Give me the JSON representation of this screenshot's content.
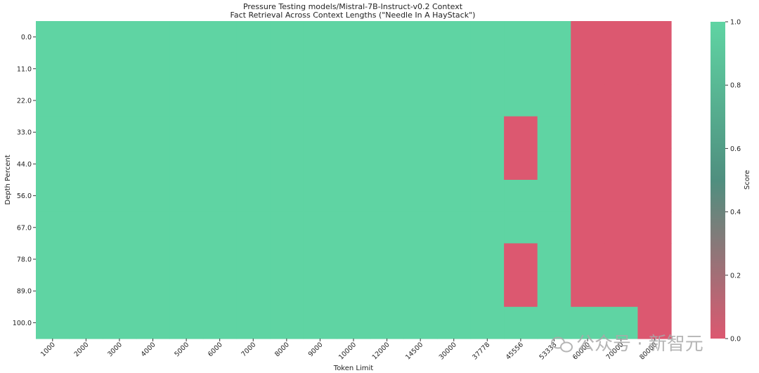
{
  "chart_data": {
    "type": "heatmap",
    "title": "Pressure Testing models/Mistral-7B-Instruct-v0.2 Context",
    "subtitle": "Fact Retrieval Across Context Lengths (\"Needle In A HayStack\")",
    "xlabel": "Token Limit",
    "ylabel": "Depth Percent",
    "x_categories": [
      "1000",
      "2000",
      "3000",
      "4000",
      "5000",
      "6000",
      "7000",
      "8000",
      "9000",
      "10000",
      "12000",
      "14500",
      "30000",
      "37778",
      "45556",
      "53333",
      "60000",
      "70000",
      "80000"
    ],
    "y_categories": [
      "0.0",
      "11.0",
      "22.0",
      "33.0",
      "44.0",
      "56.0",
      "67.0",
      "78.0",
      "89.0",
      "100.0"
    ],
    "values": [
      [
        1,
        1,
        1,
        1,
        1,
        1,
        1,
        1,
        1,
        1,
        1,
        1,
        1,
        1,
        1,
        1,
        0,
        0,
        0
      ],
      [
        1,
        1,
        1,
        1,
        1,
        1,
        1,
        1,
        1,
        1,
        1,
        1,
        1,
        1,
        1,
        1,
        0,
        0,
        0
      ],
      [
        1,
        1,
        1,
        1,
        1,
        1,
        1,
        1,
        1,
        1,
        1,
        1,
        1,
        1,
        1,
        1,
        0,
        0,
        0
      ],
      [
        1,
        1,
        1,
        1,
        1,
        1,
        1,
        1,
        1,
        1,
        1,
        1,
        1,
        1,
        0,
        1,
        0,
        0,
        0
      ],
      [
        1,
        1,
        1,
        1,
        1,
        1,
        1,
        1,
        1,
        1,
        1,
        1,
        1,
        1,
        0,
        1,
        0,
        0,
        0
      ],
      [
        1,
        1,
        1,
        1,
        1,
        1,
        1,
        1,
        1,
        1,
        1,
        1,
        1,
        1,
        1,
        1,
        0,
        0,
        0
      ],
      [
        1,
        1,
        1,
        1,
        1,
        1,
        1,
        1,
        1,
        1,
        1,
        1,
        1,
        1,
        1,
        1,
        0,
        0,
        0
      ],
      [
        1,
        1,
        1,
        1,
        1,
        1,
        1,
        1,
        1,
        1,
        1,
        1,
        1,
        1,
        0,
        1,
        0,
        0,
        0
      ],
      [
        1,
        1,
        1,
        1,
        1,
        1,
        1,
        1,
        1,
        1,
        1,
        1,
        1,
        1,
        0,
        1,
        0,
        0,
        0
      ],
      [
        1,
        1,
        1,
        1,
        1,
        1,
        1,
        1,
        1,
        1,
        1,
        1,
        1,
        1,
        1,
        1,
        1,
        1,
        0
      ]
    ],
    "colorbar": {
      "label": "Score",
      "min": 0.0,
      "max": 1.0,
      "ticks": [
        "0.0",
        "0.2",
        "0.4",
        "0.6",
        "0.8",
        "1.0"
      ]
    },
    "colors": {
      "low": "#dc5870",
      "high": "#5fd4a3",
      "mid": "#4f8f7f"
    }
  },
  "watermark": {
    "text": "公众号 · 新智元"
  }
}
